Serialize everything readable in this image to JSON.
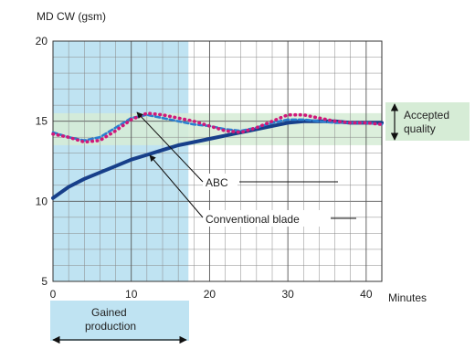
{
  "chart_data": {
    "type": "line",
    "ylabel": "MD CW (gsm)",
    "xlabel": "Minutes",
    "xlim": [
      0,
      42
    ],
    "ylim": [
      5,
      20
    ],
    "x_ticks": [
      0,
      10,
      20,
      30,
      40
    ],
    "y_ticks": [
      5,
      10,
      15,
      20
    ],
    "grid": true,
    "series": [
      {
        "name": "ABC",
        "color": "#2a7fd0",
        "style": "dashed",
        "x": [
          0,
          2,
          4,
          6,
          8,
          10,
          12,
          14,
          16,
          18,
          20,
          22,
          24,
          26,
          28,
          30,
          32,
          34,
          36,
          38,
          40,
          42
        ],
        "y": [
          14.3,
          14.0,
          13.8,
          14.0,
          14.6,
          15.2,
          15.4,
          15.2,
          15.0,
          14.8,
          14.7,
          14.5,
          14.4,
          14.6,
          14.9,
          15.1,
          15.1,
          15.0,
          14.9,
          14.9,
          14.9,
          14.8
        ]
      },
      {
        "name": "Conventional blade",
        "color": "#d0187a",
        "style": "dotted",
        "x": [
          0,
          2,
          4,
          6,
          8,
          10,
          12,
          14,
          16,
          18,
          20,
          22,
          24,
          26,
          28,
          30,
          32,
          34,
          36,
          38,
          40,
          42
        ],
        "y": [
          14.2,
          14.0,
          13.7,
          13.8,
          14.4,
          15.1,
          15.5,
          15.4,
          15.2,
          15.0,
          14.7,
          14.4,
          14.3,
          14.6,
          15.0,
          15.4,
          15.4,
          15.2,
          15.0,
          14.9,
          14.9,
          14.8
        ]
      },
      {
        "name": "",
        "color": "#173f8a",
        "style": "solid",
        "x": [
          0,
          2,
          4,
          6,
          8,
          10,
          12,
          14,
          16,
          18,
          20,
          22,
          24,
          26,
          28,
          30,
          32,
          34,
          36,
          38,
          40,
          42
        ],
        "y": [
          10.2,
          10.9,
          11.4,
          11.8,
          12.2,
          12.6,
          12.9,
          13.2,
          13.5,
          13.7,
          13.9,
          14.1,
          14.3,
          14.5,
          14.7,
          14.9,
          15.0,
          15.0,
          15.0,
          14.9,
          14.9,
          14.9
        ]
      }
    ],
    "accepted_quality_band": {
      "min": 13.5,
      "max": 15.5,
      "color": "#d6ecd6"
    },
    "gained_production_region": {
      "x_start": 0,
      "x_end": 17.3,
      "color": "#bfe3f2"
    },
    "annotations": {
      "abc": "ABC",
      "conventional": "Conventional blade",
      "accepted_quality": [
        "Accepted",
        "quality"
      ],
      "gained_production": [
        "Gained",
        "production"
      ]
    }
  }
}
